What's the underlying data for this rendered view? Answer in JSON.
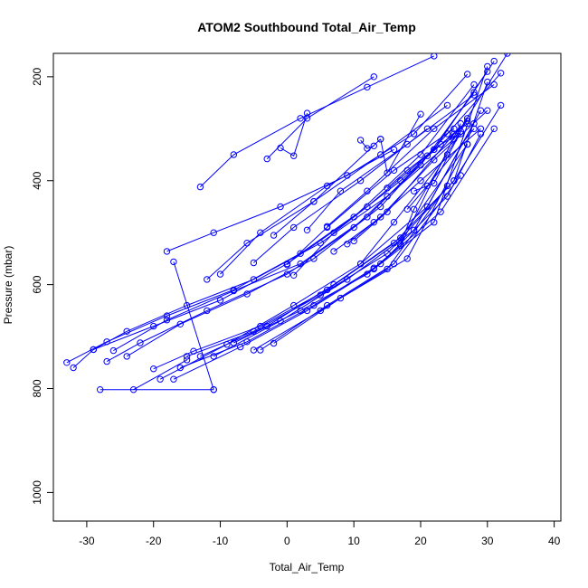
{
  "chart_data": {
    "type": "line",
    "title": "ATOM2 Southbound Total_Air_Temp",
    "xlabel": "Total_Air_Temp",
    "ylabel": "Pressure (mbar)",
    "xlim": [
      -35,
      41
    ],
    "ylim": [
      1055,
      155
    ],
    "y_reversed": true,
    "x_ticks": [
      -30,
      -20,
      -10,
      0,
      10,
      20,
      30,
      40
    ],
    "y_ticks": [
      200,
      400,
      600,
      800,
      1000
    ],
    "grid": false,
    "legend": "none",
    "series_color": "#0000ff",
    "point_marker": "open-circle",
    "series": [
      {
        "x": [
          -33,
          -27,
          -18,
          -8,
          2,
          12,
          22,
          30
        ],
        "y": [
          750,
          710,
          660,
          610,
          540,
          450,
          340,
          190
        ]
      },
      {
        "x": [
          -32,
          -29,
          -20,
          -10,
          0,
          10,
          20,
          28
        ],
        "y": [
          760,
          725,
          680,
          630,
          560,
          470,
          350,
          215
        ]
      },
      {
        "x": [
          -29,
          -24,
          -15,
          -5,
          5,
          15,
          25,
          33
        ],
        "y": [
          725,
          690,
          640,
          590,
          520,
          430,
          320,
          155
        ]
      },
      {
        "x": [
          -27,
          -22,
          -12,
          0,
          10,
          20,
          28
        ],
        "y": [
          748,
          712,
          650,
          580,
          490,
          370,
          230
        ]
      },
      {
        "x": [
          -26,
          -18,
          -8,
          2,
          12,
          22,
          31
        ],
        "y": [
          727,
          668,
          612,
          560,
          470,
          340,
          170
        ]
      },
      {
        "x": [
          -24,
          -16,
          -6,
          4,
          14,
          24,
          32
        ],
        "y": [
          738,
          676,
          618,
          550,
          450,
          310,
          193
        ]
      },
      {
        "x": [
          -28,
          -11
        ],
        "y": [
          802,
          802
        ]
      },
      {
        "x": [
          -23,
          -15
        ],
        "y": [
          802,
          745
        ]
      },
      {
        "x": [
          -20,
          -14,
          -4,
          6,
          16,
          25,
          30
        ],
        "y": [
          762,
          728,
          680,
          610,
          520,
          400,
          210
        ]
      },
      {
        "x": [
          -19,
          -9,
          1,
          11,
          21,
          29
        ],
        "y": [
          782,
          715,
          640,
          560,
          450,
          265
        ]
      },
      {
        "x": [
          -17,
          -7,
          3,
          13,
          23,
          31
        ],
        "y": [
          782,
          720,
          650,
          570,
          460,
          300
        ]
      },
      {
        "x": [
          -16,
          -6,
          4,
          14,
          24,
          29
        ],
        "y": [
          760,
          710,
          640,
          560,
          430,
          310
        ]
      },
      {
        "x": [
          -15,
          -5,
          5,
          15,
          25,
          32
        ],
        "y": [
          738,
          690,
          620,
          540,
          400,
          255
        ]
      },
      {
        "x": [
          -13,
          -3,
          7,
          17,
          27
        ],
        "y": [
          738,
          680,
          600,
          510,
          330
        ]
      },
      {
        "x": [
          -11,
          -1,
          9,
          19,
          28
        ],
        "y": [
          738,
          670,
          590,
          495,
          290
        ]
      },
      {
        "x": [
          -8,
          2,
          12,
          22,
          30
        ],
        "y": [
          712,
          650,
          580,
          480,
          180
        ]
      },
      {
        "x": [
          -5,
          5,
          15,
          24
        ],
        "y": [
          726,
          650,
          570,
          410
        ]
      },
      {
        "x": [
          -4,
          6,
          16,
          26
        ],
        "y": [
          726,
          640,
          560,
          390
        ]
      },
      {
        "x": [
          -2,
          8,
          18,
          27
        ],
        "y": [
          713,
          626,
          550,
          330
        ]
      },
      {
        "x": [
          -18,
          -11,
          -1,
          9,
          19,
          27
        ],
        "y": [
          536,
          500,
          450,
          390,
          310,
          195
        ]
      },
      {
        "x": [
          -17,
          -11
        ],
        "y": [
          556,
          802
        ]
      },
      {
        "x": [
          -13,
          -8,
          2,
          12,
          22
        ],
        "y": [
          412,
          350,
          280,
          220,
          160
        ]
      },
      {
        "x": [
          -12,
          -6,
          4,
          14
        ],
        "y": [
          590,
          520,
          440,
          320
        ]
      },
      {
        "x": [
          -10,
          -4,
          6,
          16
        ],
        "y": [
          580,
          500,
          410,
          340
        ]
      },
      {
        "x": [
          -5,
          1,
          11,
          21
        ],
        "y": [
          558,
          490,
          400,
          300
        ]
      },
      {
        "x": [
          -3,
          3,
          13
        ],
        "y": [
          358,
          280,
          200
        ]
      },
      {
        "x": [
          -2,
          4,
          14,
          24
        ],
        "y": [
          505,
          440,
          350,
          255
        ]
      },
      {
        "x": [
          0,
          6,
          16,
          25
        ],
        "y": [
          562,
          490,
          380,
          300
        ]
      },
      {
        "x": [
          1,
          7,
          17,
          27
        ],
        "y": [
          582,
          500,
          400,
          285
        ]
      },
      {
        "x": [
          -1,
          1,
          3
        ],
        "y": [
          337,
          352,
          270
        ]
      },
      {
        "x": [
          3,
          8,
          18,
          28
        ],
        "y": [
          495,
          420,
          330,
          235
        ]
      },
      {
        "x": [
          6,
          12,
          22,
          31
        ],
        "y": [
          488,
          420,
          300,
          215
        ]
      },
      {
        "x": [
          7,
          13,
          20,
          29
        ],
        "y": [
          536,
          480,
          400,
          300
        ]
      },
      {
        "x": [
          9,
          14,
          22,
          30
        ],
        "y": [
          522,
          470,
          360,
          265
        ]
      },
      {
        "x": [
          11,
          16,
          24
        ],
        "y": [
          560,
          480,
          350
        ]
      },
      {
        "x": [
          10,
          15,
          25
        ],
        "y": [
          516,
          460,
          310
        ]
      },
      {
        "x": [
          13,
          17,
          26
        ],
        "y": [
          568,
          525,
          290
        ]
      },
      {
        "x": [
          11,
          12,
          13
        ],
        "y": [
          322,
          338,
          333
        ]
      },
      {
        "x": [
          14,
          15,
          20
        ],
        "y": [
          320,
          385,
          272
        ]
      },
      {
        "x": [
          15,
          18,
          27
        ],
        "y": [
          414,
          380,
          290
        ]
      },
      {
        "x": [
          17,
          19,
          26
        ],
        "y": [
          522,
          455,
          305
        ]
      },
      {
        "x": [
          18,
          21,
          28
        ],
        "y": [
          455,
          410,
          300
        ]
      },
      {
        "x": [
          21,
          23,
          26
        ],
        "y": [
          352,
          330,
          310
        ]
      },
      {
        "x": [
          19,
          22,
          27
        ],
        "y": [
          420,
          405,
          280
        ]
      }
    ]
  }
}
